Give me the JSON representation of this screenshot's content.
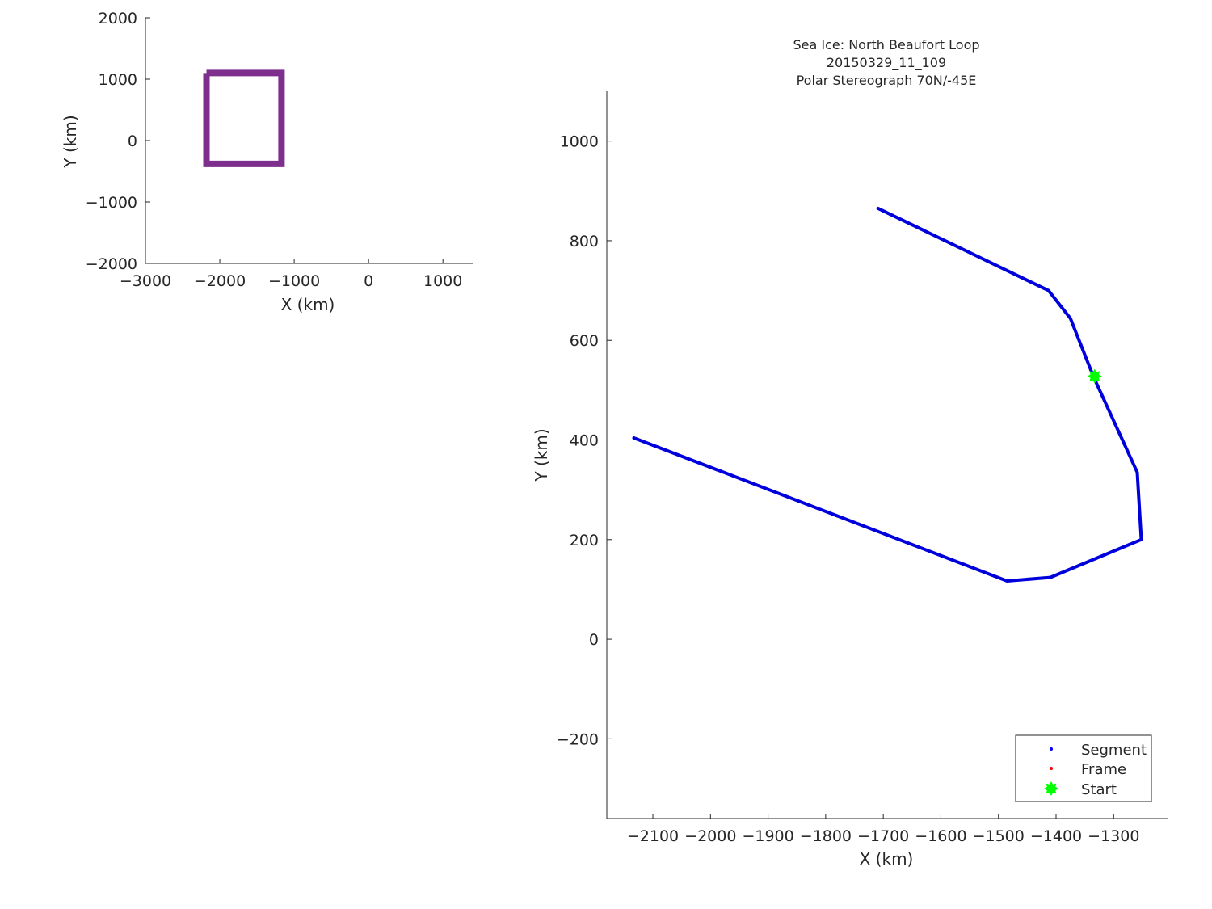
{
  "chart_data": [
    {
      "type": "line",
      "name": "overview",
      "xlabel": "X (km)",
      "ylabel": "Y (km)",
      "xlim": [
        -3000,
        1400
      ],
      "ylim": [
        -2000,
        2000
      ],
      "xticks": [
        -3000,
        -2000,
        -1000,
        0,
        1000
      ],
      "yticks": [
        -2000,
        -1000,
        0,
        1000,
        2000
      ],
      "xtick_labels": [
        "−3000",
        "−2000",
        "−1000",
        "0",
        "1000"
      ],
      "ytick_labels": [
        "−2000",
        "−1000",
        "0",
        "1000",
        "2000"
      ],
      "grid": false,
      "box": {
        "color": "#7e2f8e",
        "x": [
          -2180,
          -1170,
          -1170,
          -2180,
          -2180
        ],
        "y": [
          1100,
          1100,
          -380,
          -380,
          1100
        ]
      }
    },
    {
      "type": "line",
      "name": "detail",
      "title": [
        "Sea Ice: North Beaufort Loop",
        "20150329_11_109",
        "Polar Stereograph 70N/-45E"
      ],
      "xlabel": "X (km)",
      "ylabel": "Y (km)",
      "xlim": [
        -2180,
        -1205
      ],
      "ylim": [
        -360,
        1100
      ],
      "xticks": [
        -2100,
        -2000,
        -1900,
        -1800,
        -1700,
        -1600,
        -1500,
        -1400,
        -1300
      ],
      "yticks": [
        -200,
        0,
        200,
        400,
        600,
        800,
        1000
      ],
      "xtick_labels": [
        "−2100",
        "−2000",
        "−1900",
        "−1800",
        "−1700",
        "−1600",
        "−1500",
        "−1400",
        "−1300"
      ],
      "ytick_labels": [
        "−200",
        "0",
        "200",
        "400",
        "600",
        "800",
        "1000"
      ],
      "grid": false,
      "series": [
        {
          "name": "Segment",
          "color": "#0000dd",
          "x": [
            -1709,
            -1413,
            -1375,
            -1335,
            -1259,
            -1252,
            -1410,
            -1485,
            -2133
          ],
          "y": [
            865,
            700,
            644,
            527,
            335,
            200,
            124,
            117,
            404
          ]
        }
      ],
      "start": {
        "x": -1333,
        "y": 528,
        "color": "#00ff00"
      },
      "legend": {
        "position": "bottom-right",
        "entries": [
          {
            "label": "Segment",
            "color": "#0000ff",
            "marker": "dot"
          },
          {
            "label": "Frame",
            "color": "#ff0000",
            "marker": "dot"
          },
          {
            "label": "Start",
            "color": "#00ff00",
            "marker": "star"
          }
        ]
      }
    }
  ]
}
